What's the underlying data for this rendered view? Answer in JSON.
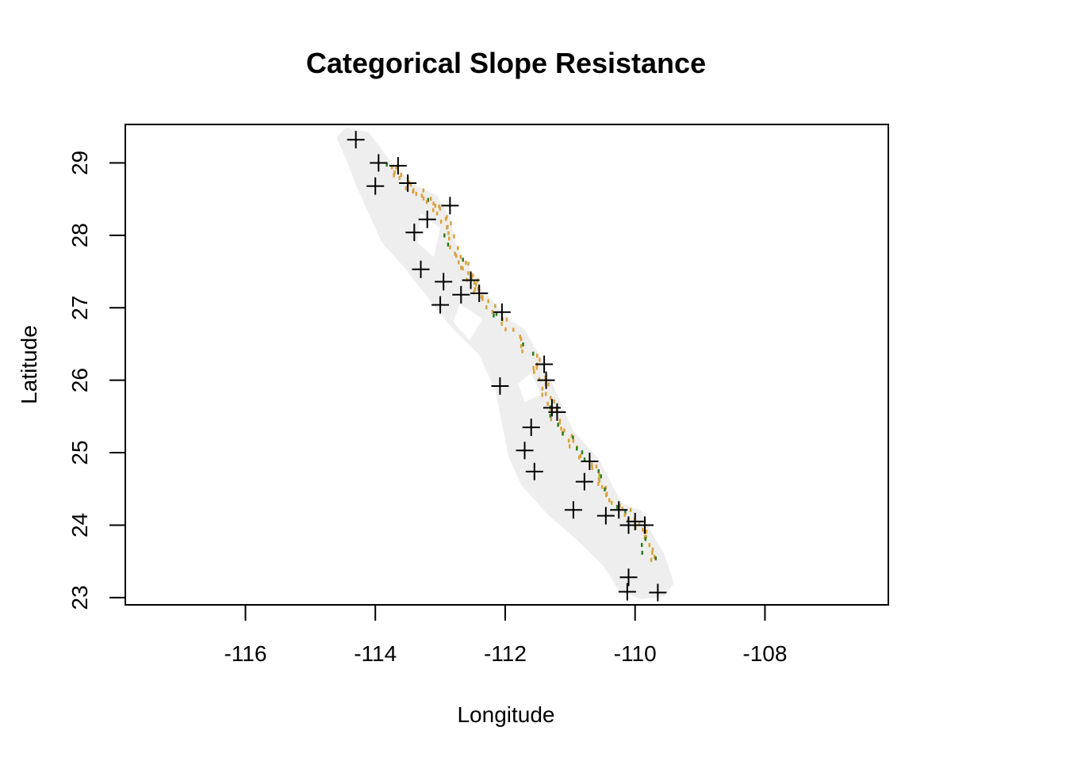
{
  "chart_data": {
    "type": "scatter",
    "title": "Categorical Slope Resistance",
    "xlabel": "Longitude",
    "ylabel": "Latitude",
    "xlim": [
      -117.85,
      -106.1
    ],
    "ylim": [
      22.9,
      29.53
    ],
    "xticks": [
      -116,
      -114,
      -112,
      -110,
      -108
    ],
    "yticks": [
      23,
      24,
      25,
      26,
      27,
      28,
      29
    ],
    "marker": "+",
    "marker_color": "#000000",
    "raster_colors": {
      "background_region": "#eeeeee",
      "slope_low": "#d9a23a",
      "slope_high": "#2e7d1e"
    },
    "points": [
      {
        "x": -114.3,
        "y": 29.32
      },
      {
        "x": -113.95,
        "y": 29.0
      },
      {
        "x": -113.65,
        "y": 28.96
      },
      {
        "x": -114.0,
        "y": 28.68
      },
      {
        "x": -113.5,
        "y": 28.72
      },
      {
        "x": -112.85,
        "y": 28.41
      },
      {
        "x": -113.2,
        "y": 28.22
      },
      {
        "x": -113.4,
        "y": 28.04
      },
      {
        "x": -113.3,
        "y": 27.53
      },
      {
        "x": -112.95,
        "y": 27.36
      },
      {
        "x": -112.53,
        "y": 27.38
      },
      {
        "x": -112.68,
        "y": 27.18
      },
      {
        "x": -112.4,
        "y": 27.2
      },
      {
        "x": -113.0,
        "y": 27.04
      },
      {
        "x": -112.05,
        "y": 26.94
      },
      {
        "x": -111.4,
        "y": 26.22
      },
      {
        "x": -111.37,
        "y": 26.0
      },
      {
        "x": -112.08,
        "y": 25.92
      },
      {
        "x": -111.28,
        "y": 25.62
      },
      {
        "x": -111.2,
        "y": 25.56
      },
      {
        "x": -111.6,
        "y": 25.35
      },
      {
        "x": -111.7,
        "y": 25.03
      },
      {
        "x": -111.55,
        "y": 24.74
      },
      {
        "x": -110.7,
        "y": 24.88
      },
      {
        "x": -110.78,
        "y": 24.6
      },
      {
        "x": -110.95,
        "y": 24.21
      },
      {
        "x": -110.45,
        "y": 24.13
      },
      {
        "x": -110.25,
        "y": 24.21
      },
      {
        "x": -110.1,
        "y": 24.0
      },
      {
        "x": -110.0,
        "y": 24.05
      },
      {
        "x": -109.85,
        "y": 24.0
      },
      {
        "x": -110.1,
        "y": 23.28
      },
      {
        "x": -110.12,
        "y": 23.08
      },
      {
        "x": -109.65,
        "y": 23.07
      }
    ]
  }
}
